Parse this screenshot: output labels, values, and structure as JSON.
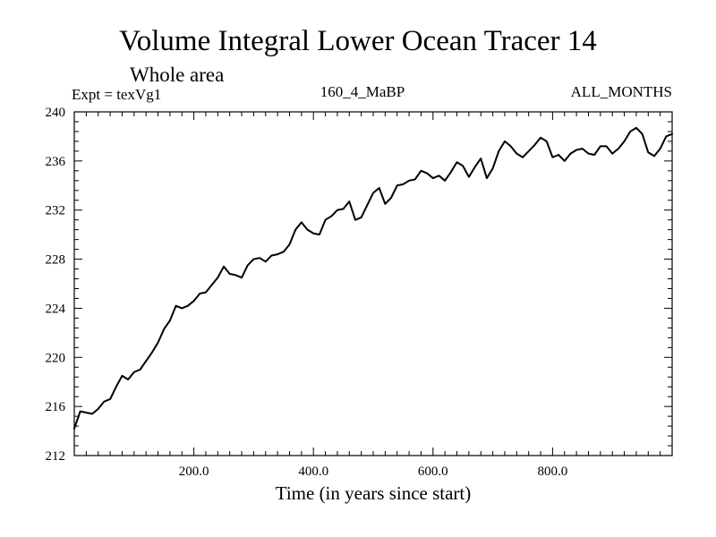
{
  "chart_data": {
    "type": "line",
    "title": "Volume Integral Lower Ocean Tracer 14",
    "subtitle": "Whole area",
    "experiment_label": "Expt = texVg1",
    "experiment_name": "160_4_MaBP",
    "season": "ALL_MONTHS",
    "xlabel": "Time (in years since start)",
    "ylabel": "",
    "xlim": [
      0,
      1000
    ],
    "ylim": [
      212,
      240
    ],
    "x_ticks": [
      200,
      400,
      600,
      800
    ],
    "x_tick_labels": [
      "200.0",
      "400.0",
      "600.0",
      "800.0"
    ],
    "y_ticks": [
      212,
      216,
      220,
      224,
      228,
      232,
      236,
      240
    ],
    "y_tick_labels": [
      "212",
      "216",
      "220",
      "224",
      "228",
      "232",
      "236",
      "240"
    ],
    "grid": false,
    "series": [
      {
        "name": "Lower Ocean Tracer 14",
        "color": "#000000",
        "x": [
          0,
          10,
          20,
          30,
          40,
          50,
          60,
          70,
          80,
          90,
          100,
          110,
          120,
          130,
          140,
          150,
          160,
          170,
          180,
          190,
          200,
          210,
          220,
          230,
          240,
          250,
          260,
          270,
          280,
          290,
          300,
          310,
          320,
          330,
          340,
          350,
          360,
          370,
          380,
          390,
          400,
          410,
          420,
          430,
          440,
          450,
          460,
          470,
          480,
          490,
          500,
          510,
          520,
          530,
          540,
          550,
          560,
          570,
          580,
          590,
          600,
          610,
          620,
          630,
          640,
          650,
          660,
          670,
          680,
          690,
          700,
          710,
          720,
          730,
          740,
          750,
          760,
          770,
          780,
          790,
          800,
          810,
          820,
          830,
          840,
          850,
          860,
          870,
          880,
          890,
          900,
          910,
          920,
          930,
          940,
          950,
          960,
          970,
          980,
          990,
          1000
        ],
        "values": [
          214.2,
          215.6,
          215.5,
          215.4,
          215.8,
          216.4,
          216.6,
          217.6,
          218.5,
          218.2,
          218.8,
          219.0,
          219.7,
          220.4,
          221.2,
          222.3,
          223.0,
          224.2,
          224.0,
          224.2,
          224.6,
          225.2,
          225.3,
          225.9,
          226.5,
          227.4,
          226.8,
          226.7,
          226.5,
          227.5,
          228.0,
          228.1,
          227.8,
          228.3,
          228.4,
          228.6,
          229.2,
          230.4,
          231.0,
          230.4,
          230.1,
          230.0,
          231.2,
          231.5,
          232.0,
          232.1,
          232.7,
          231.2,
          231.4,
          232.4,
          233.4,
          233.8,
          232.5,
          233.0,
          234.0,
          234.1,
          234.4,
          234.5,
          235.2,
          235.0,
          234.6,
          234.8,
          234.4,
          235.1,
          235.9,
          235.6,
          234.7,
          235.5,
          236.2,
          234.6,
          235.4,
          236.8,
          237.6,
          237.2,
          236.6,
          236.3,
          236.8,
          237.3,
          237.9,
          237.6,
          236.3,
          236.5,
          236.0,
          236.6,
          236.9,
          237.0,
          236.6,
          236.5,
          237.2,
          237.2,
          236.6,
          237.0,
          237.6,
          238.4,
          238.7,
          238.2,
          236.7,
          236.4,
          237.0,
          238.0,
          238.2
        ]
      }
    ]
  }
}
